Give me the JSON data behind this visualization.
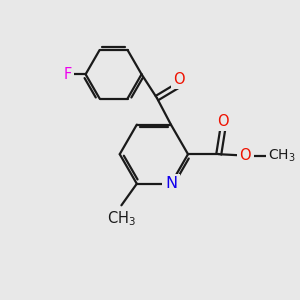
{
  "bg_color": "#e8e8e8",
  "bond_color": "#1a1a1a",
  "bond_width": 1.6,
  "atom_colors": {
    "F": "#ee00ee",
    "O": "#ee1100",
    "N": "#1100ee",
    "C": "#1a1a1a"
  },
  "font_size": 10.5,
  "fig_size": [
    3.0,
    3.0
  ],
  "dpi": 100,
  "xlim": [
    0,
    10
  ],
  "ylim": [
    0,
    10
  ]
}
